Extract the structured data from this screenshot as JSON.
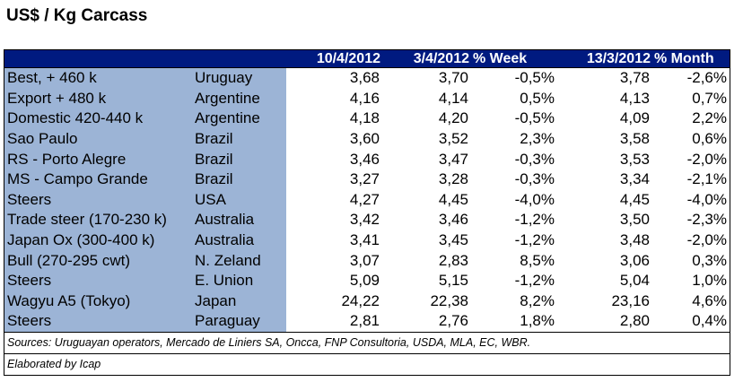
{
  "title": "US$ / Kg Carcass",
  "headers": [
    "",
    "",
    "10/4/2012",
    "3/4/2012",
    "% Week",
    "13/3/2012",
    "% Month"
  ],
  "rows": [
    {
      "name": "Best, + 460 k",
      "country": "Uruguay",
      "current": "3,68",
      "week_ago": "3,70",
      "pct_week": "-0,5%",
      "month_ago": "3,78",
      "pct_month": "-2,6%"
    },
    {
      "name": "Export + 480 k",
      "country": "Argentine",
      "current": "4,16",
      "week_ago": "4,14",
      "pct_week": "0,5%",
      "month_ago": "4,13",
      "pct_month": "0,7%"
    },
    {
      "name": "Domestic 420-440 k",
      "country": "Argentine",
      "current": "4,18",
      "week_ago": "4,20",
      "pct_week": "-0,5%",
      "month_ago": "4,09",
      "pct_month": "2,2%"
    },
    {
      "name": "Sao Paulo",
      "country": "Brazil",
      "current": "3,60",
      "week_ago": "3,52",
      "pct_week": "2,3%",
      "month_ago": "3,58",
      "pct_month": "0,6%"
    },
    {
      "name": "RS - Porto Alegre",
      "country": "Brazil",
      "current": "3,46",
      "week_ago": "3,47",
      "pct_week": "-0,3%",
      "month_ago": "3,53",
      "pct_month": "-2,0%"
    },
    {
      "name": "MS - Campo Grande",
      "country": "Brazil",
      "current": "3,27",
      "week_ago": "3,28",
      "pct_week": "-0,3%",
      "month_ago": "3,34",
      "pct_month": "-2,1%"
    },
    {
      "name": "Steers",
      "country": "USA",
      "current": "4,27",
      "week_ago": "4,45",
      "pct_week": "-4,0%",
      "month_ago": "4,45",
      "pct_month": "-4,0%"
    },
    {
      "name": "Trade steer (170-230 k)",
      "country": "Australia",
      "current": "3,42",
      "week_ago": "3,46",
      "pct_week": "-1,2%",
      "month_ago": "3,50",
      "pct_month": "-2,3%"
    },
    {
      "name": "Japan Ox (300-400 k)",
      "country": "Australia",
      "current": "3,41",
      "week_ago": "3,45",
      "pct_week": "-1,2%",
      "month_ago": "3,48",
      "pct_month": "-2,0%"
    },
    {
      "name": "Bull (270-295 cwt)",
      "country": "N. Zeland",
      "current": "3,07",
      "week_ago": "2,83",
      "pct_week": "8,5%",
      "month_ago": "3,06",
      "pct_month": "0,3%"
    },
    {
      "name": "Steers",
      "country": "E. Union",
      "current": "5,09",
      "week_ago": "5,15",
      "pct_week": "-1,2%",
      "month_ago": "5,04",
      "pct_month": "1,0%"
    },
    {
      "name": "Wagyu A5 (Tokyo)",
      "country": "Japan",
      "current": "24,22",
      "week_ago": "22,38",
      "pct_week": "8,2%",
      "month_ago": "23,16",
      "pct_month": "4,6%"
    },
    {
      "name": "Steers",
      "country": "Paraguay",
      "current": "2,81",
      "week_ago": "2,76",
      "pct_week": "1,8%",
      "month_ago": "2,80",
      "pct_month": "0,4%"
    }
  ],
  "sources": "Sources: Uruguayan operators, Mercado de Liniers SA, Oncca, FNP Consultoria, USDA, MLA, EC, WBR.",
  "elaborated": "Elaborated by Icap",
  "colors": {
    "header_bg": "#001a80",
    "label_bg": "#9cb4d6"
  }
}
